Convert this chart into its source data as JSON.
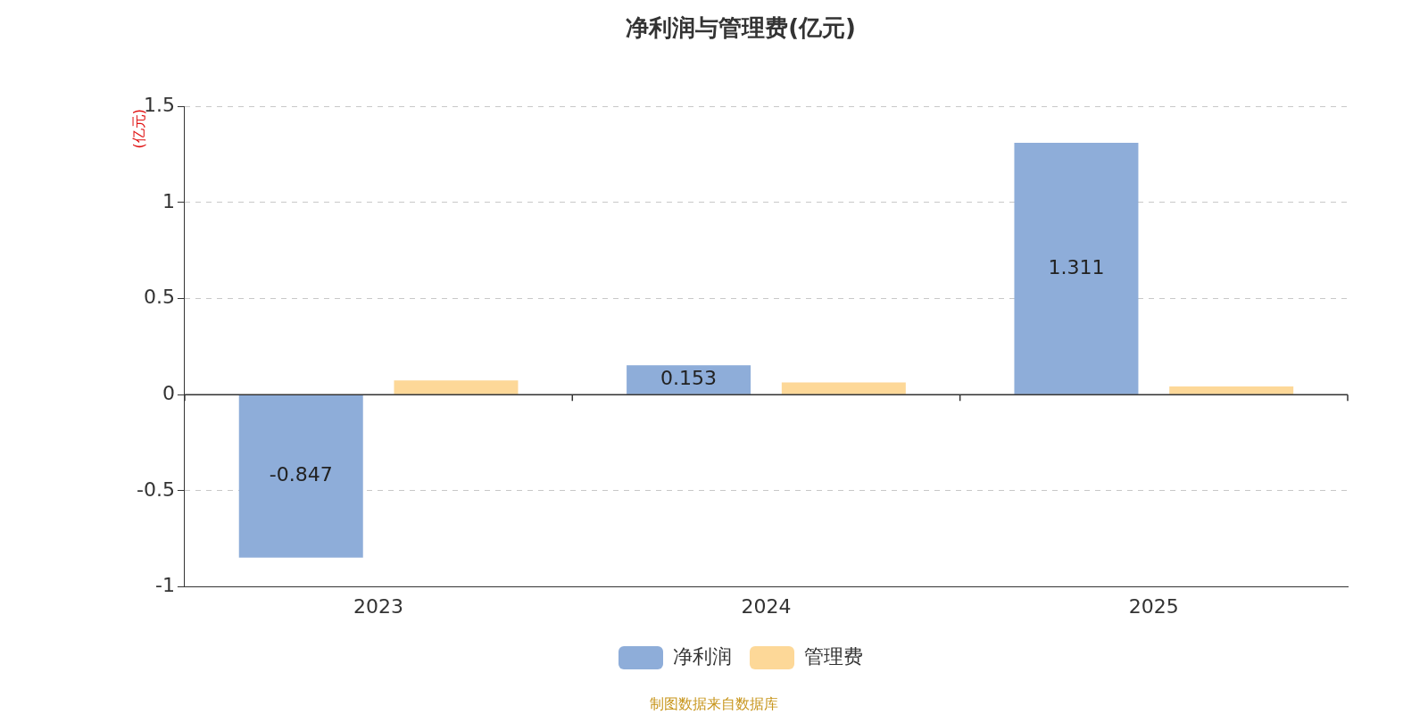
{
  "chart_data": {
    "type": "bar",
    "title": "净利润与管理费(亿元)",
    "ylabel": "(亿元)",
    "categories": [
      "2023",
      "2024",
      "2025"
    ],
    "series": [
      {
        "name": "净利润",
        "color": "#8eadd9",
        "values": [
          -0.847,
          0.153,
          1.311
        ],
        "value_labels": [
          "-0.847",
          "0.153",
          "1.311"
        ]
      },
      {
        "name": "管理费",
        "color": "#fdd898",
        "values": [
          0.074,
          0.064,
          0.043
        ]
      }
    ],
    "ylim": [
      -1,
      1.5
    ],
    "yticks": [
      -1,
      -0.5,
      0,
      0.5,
      1,
      1.5
    ],
    "grid": "y",
    "legend": "bottom",
    "annotations": [
      "制图数据来自数据库"
    ]
  }
}
